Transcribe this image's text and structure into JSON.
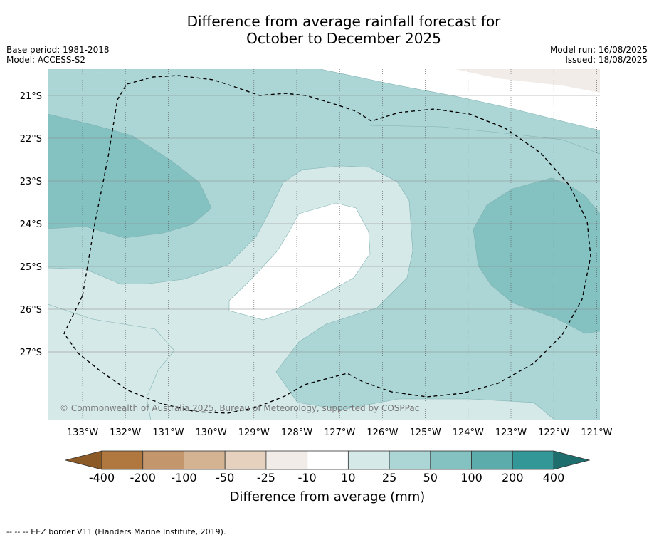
{
  "title_line1": "Difference from average rainfall forecast for",
  "title_line2": "October to December 2025",
  "base_period": "Base period: 1981-2018",
  "model": "Model: ACCESS-S2",
  "model_run": "Model run: 16/08/2025",
  "issued": "Issued: 18/08/2025",
  "copyright": "© Commonwealth of Australia 2025, Bureau of Meteorology, supported by COSPPac",
  "footnote": "-- -- -- EEZ border V11 (Flanders Marine Institute, 2019).",
  "lat_labels": [
    "21°S",
    "22°S",
    "23°S",
    "24°S",
    "25°S",
    "26°S",
    "27°S"
  ],
  "lon_labels": [
    "133°W",
    "132°W",
    "131°W",
    "130°W",
    "129°W",
    "128°W",
    "127°W",
    "126°W",
    "125°W",
    "124°W",
    "123°W",
    "122°W",
    "121°W"
  ],
  "colorbar": {
    "title": "Difference from average (mm)",
    "tick_labels": [
      "-400",
      "-200",
      "-100",
      "-50",
      "-25",
      "-10",
      "10",
      "25",
      "50",
      "100",
      "200",
      "400"
    ],
    "colors": {
      "below_-400": "#8c5a27",
      "-400_-200": "#b0773f",
      "-200_-100": "#c3966b",
      "-100_-50": "#d4b393",
      "-50_-25": "#e5d1bd",
      "-25_-10": "#f1ece8",
      "-10_10": "#ffffff",
      "10_25": "#d5e9e9",
      "25_50": "#acd5d5",
      "50_100": "#84c1c1",
      "100_200": "#5cacac",
      "200_400": "#349797",
      "above_400": "#1f6e6e"
    }
  }
}
